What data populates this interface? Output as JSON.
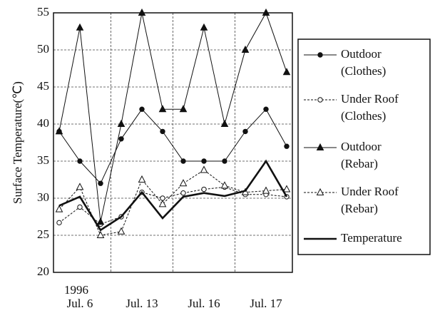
{
  "chart_data": {
    "type": "line",
    "y_label": "Surface Temperature(℃)",
    "year_label": "1996",
    "categories": [
      null,
      "Jul. 6",
      null,
      null,
      "Jul. 13",
      null,
      null,
      "Jul. 16",
      null,
      null,
      "Jul. 17",
      null
    ],
    "ylim": [
      20,
      55
    ],
    "yticks": [
      20,
      25,
      30,
      35,
      40,
      45,
      50,
      55
    ],
    "grid": true,
    "series": [
      {
        "name": "Outdoor (Clothes)",
        "color": "#111",
        "marker": "circle-filled",
        "line_style": "solid",
        "values": [
          39,
          35,
          32,
          38,
          42,
          39,
          35,
          35,
          35,
          39,
          42,
          37
        ]
      },
      {
        "name": "Under Roof (Clothes)",
        "color": "#111",
        "marker": "circle-open",
        "line_style": "dashed",
        "values": [
          26.7,
          28.8,
          26.5,
          27.5,
          30.8,
          30,
          30.7,
          31.2,
          31.5,
          30.5,
          30.5,
          30.2
        ]
      },
      {
        "name": "Outdoor (Rebar)",
        "color": "#111",
        "marker": "triangle-filled",
        "line_style": "solid",
        "values": [
          39,
          53,
          26.8,
          40,
          55,
          42,
          42,
          53,
          40,
          50,
          55,
          47
        ]
      },
      {
        "name": "Under Roof (Rebar)",
        "color": "#111",
        "marker": "triangle-open",
        "line_style": "dashed",
        "values": [
          28.5,
          31.5,
          25,
          25.5,
          32.5,
          29.2,
          32,
          33.8,
          31.7,
          30.8,
          31,
          31.2
        ]
      },
      {
        "name": "Temperature",
        "color": "#111",
        "marker": "none",
        "line_style": "thick",
        "values": [
          29,
          30.2,
          25.7,
          27.5,
          30.8,
          27.3,
          30.2,
          30.7,
          30.3,
          31,
          35,
          30.2
        ]
      }
    ]
  }
}
